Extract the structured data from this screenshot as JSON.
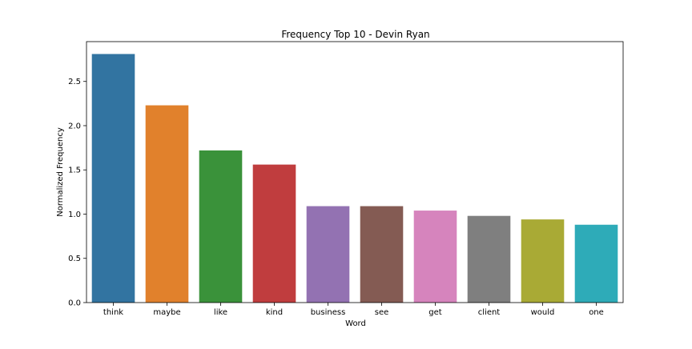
{
  "chart_data": {
    "type": "bar",
    "title": "Frequency Top 10 - Devin Ryan",
    "xlabel": "Word",
    "ylabel": "Normalized Frequency",
    "categories": [
      "think",
      "maybe",
      "like",
      "kind",
      "business",
      "see",
      "get",
      "client",
      "would",
      "one"
    ],
    "values": [
      2.81,
      2.23,
      1.72,
      1.56,
      1.09,
      1.09,
      1.04,
      0.98,
      0.94,
      0.88
    ],
    "ylim": [
      0,
      2.95
    ],
    "yticks": [
      0.0,
      0.5,
      1.0,
      1.5,
      2.0,
      2.5
    ],
    "ytick_labels": [
      "0.0",
      "0.5",
      "1.0",
      "1.5",
      "2.0",
      "2.5"
    ],
    "grid": false,
    "colors": [
      "#3274a1",
      "#e1812c",
      "#3a923a",
      "#c03d3e",
      "#9372b2",
      "#845b53",
      "#d684bd",
      "#7f7f7f",
      "#a9aa35",
      "#2eabb8"
    ]
  }
}
